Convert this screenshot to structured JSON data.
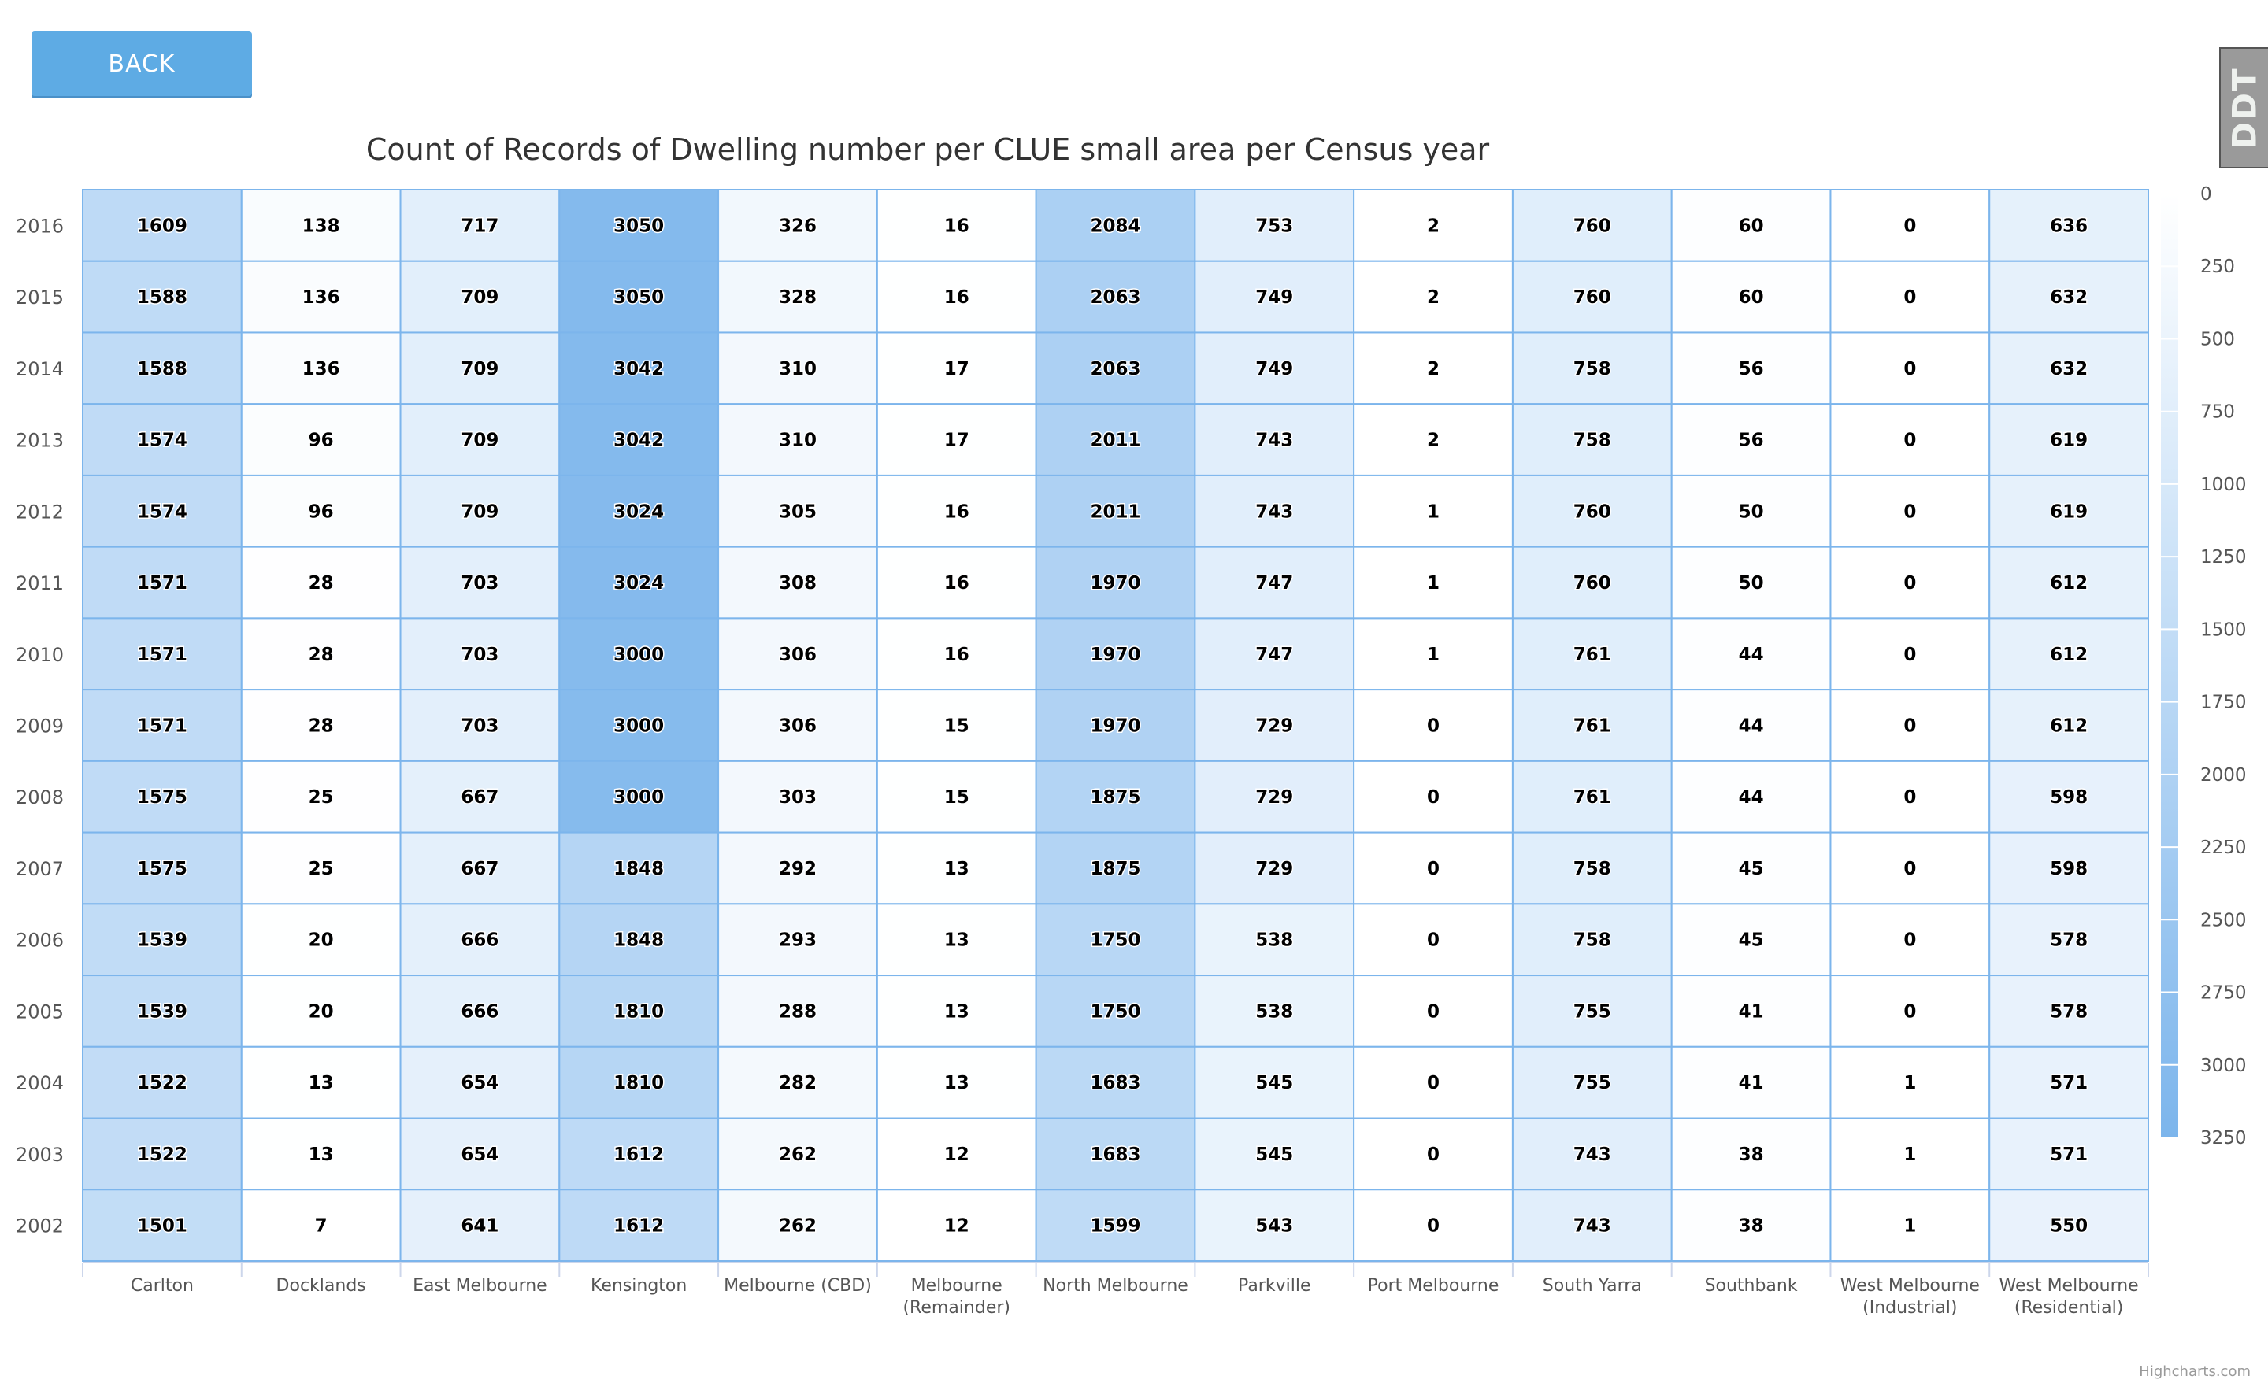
{
  "back_button": {
    "label": "BACK"
  },
  "logo": {
    "text": "DDT"
  },
  "credits": "Highcharts.com",
  "chart_data": {
    "type": "heatmap",
    "title": "Count of Records of Dwelling number per CLUE small area per Census year",
    "x_categories": [
      [
        "Carlton"
      ],
      [
        "Docklands"
      ],
      [
        "East Melbourne"
      ],
      [
        "Kensington"
      ],
      [
        "Melbourne (CBD)"
      ],
      [
        "Melbourne",
        "(Remainder)"
      ],
      [
        "North Melbourne"
      ],
      [
        "Parkville"
      ],
      [
        "Port Melbourne"
      ],
      [
        "South Yarra"
      ],
      [
        "Southbank"
      ],
      [
        "West Melbourne",
        "(Industrial)"
      ],
      [
        "West Melbourne",
        "(Residential)"
      ]
    ],
    "y_categories": [
      "2016",
      "2015",
      "2014",
      "2013",
      "2012",
      "2011",
      "2010",
      "2009",
      "2008",
      "2007",
      "2006",
      "2005",
      "2004",
      "2003",
      "2002"
    ],
    "values": [
      [
        1609,
        138,
        717,
        3050,
        326,
        16,
        2084,
        753,
        2,
        760,
        60,
        0,
        636
      ],
      [
        1588,
        136,
        709,
        3050,
        328,
        16,
        2063,
        749,
        2,
        760,
        60,
        0,
        632
      ],
      [
        1588,
        136,
        709,
        3042,
        310,
        17,
        2063,
        749,
        2,
        758,
        56,
        0,
        632
      ],
      [
        1574,
        96,
        709,
        3042,
        310,
        17,
        2011,
        743,
        2,
        758,
        56,
        0,
        619
      ],
      [
        1574,
        96,
        709,
        3024,
        305,
        16,
        2011,
        743,
        1,
        760,
        50,
        0,
        619
      ],
      [
        1571,
        28,
        703,
        3024,
        308,
        16,
        1970,
        747,
        1,
        760,
        50,
        0,
        612
      ],
      [
        1571,
        28,
        703,
        3000,
        306,
        16,
        1970,
        747,
        1,
        761,
        44,
        0,
        612
      ],
      [
        1571,
        28,
        703,
        3000,
        306,
        15,
        1970,
        729,
        0,
        761,
        44,
        0,
        612
      ],
      [
        1575,
        25,
        667,
        3000,
        303,
        15,
        1875,
        729,
        0,
        761,
        44,
        0,
        598
      ],
      [
        1575,
        25,
        667,
        1848,
        292,
        13,
        1875,
        729,
        0,
        758,
        45,
        0,
        598
      ],
      [
        1539,
        20,
        666,
        1848,
        293,
        13,
        1750,
        538,
        0,
        758,
        45,
        0,
        578
      ],
      [
        1539,
        20,
        666,
        1810,
        288,
        13,
        1750,
        538,
        0,
        755,
        41,
        0,
        578
      ],
      [
        1522,
        13,
        654,
        1810,
        282,
        13,
        1683,
        545,
        0,
        755,
        41,
        1,
        571
      ],
      [
        1522,
        13,
        654,
        1612,
        262,
        12,
        1683,
        545,
        0,
        743,
        38,
        1,
        571
      ],
      [
        1501,
        7,
        641,
        1612,
        262,
        12,
        1599,
        543,
        0,
        743,
        38,
        1,
        550
      ]
    ],
    "color_axis": {
      "min": 0,
      "max": 3250,
      "min_color": "#ffffff",
      "max_color": "#7cb5ec",
      "ticks": [
        0,
        250,
        500,
        750,
        1000,
        1250,
        1500,
        1750,
        2000,
        2250,
        2500,
        2750,
        3000,
        3250
      ]
    },
    "grid_color": "#7cb5ec",
    "legend_placement": "right"
  }
}
